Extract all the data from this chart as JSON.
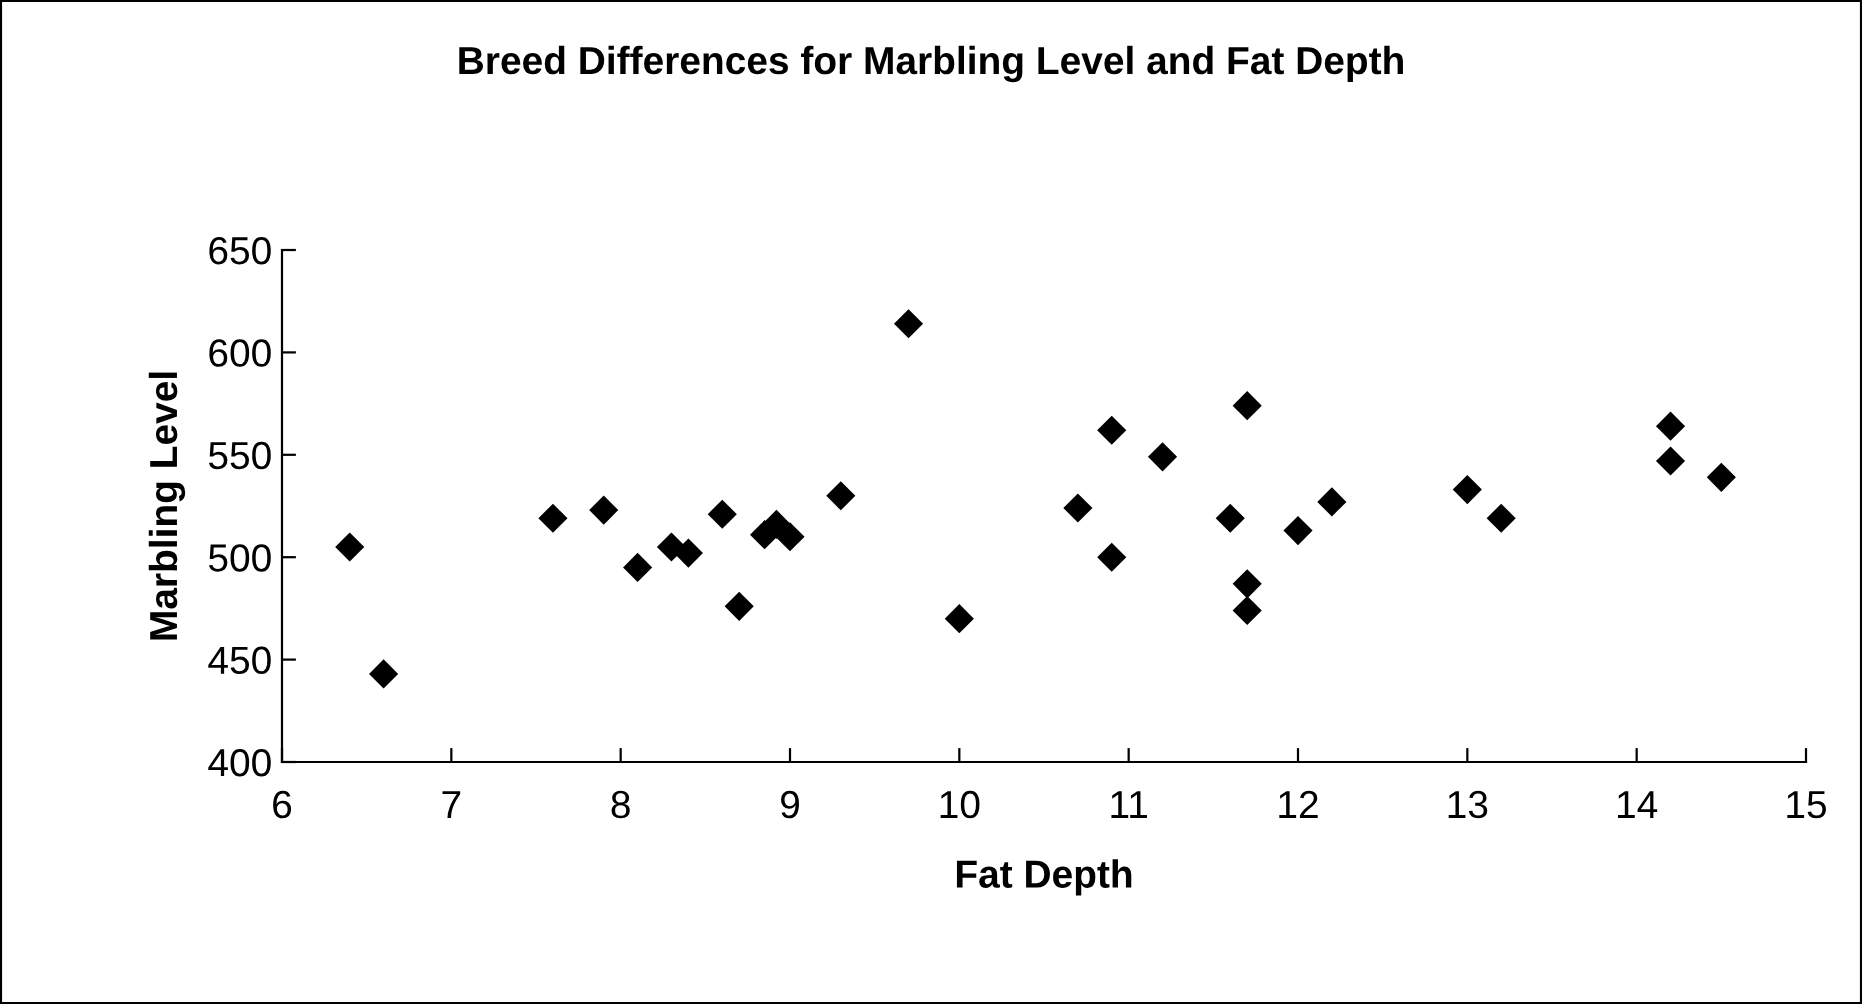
{
  "chart_data": {
    "type": "scatter",
    "title": "Breed Differences for Marbling Level and Fat Depth",
    "xlabel": "Fat Depth",
    "ylabel": "Marbling Level",
    "x": [
      6.4,
      6.6,
      7.6,
      7.9,
      8.1,
      8.3,
      8.4,
      8.6,
      8.7,
      8.85,
      8.92,
      9.0,
      9.3,
      9.7,
      10.0,
      10.7,
      10.9,
      10.9,
      11.2,
      11.6,
      11.7,
      11.7,
      11.7,
      12.0,
      12.2,
      13.0,
      13.2,
      14.2,
      14.2,
      14.5
    ],
    "values": [
      505,
      443,
      519,
      523,
      495,
      505,
      502,
      521,
      476,
      511,
      516,
      510,
      530,
      614,
      470,
      524,
      562,
      500,
      549,
      519,
      574,
      487,
      474,
      513,
      527,
      533,
      519,
      564,
      547,
      539
    ],
    "color": "#000000",
    "marker": "diamond",
    "xlim": [
      6,
      15
    ],
    "ylim": [
      400,
      650
    ],
    "xticks": [
      6,
      7,
      8,
      9,
      10,
      11,
      12,
      13,
      14,
      15
    ],
    "yticks": [
      400,
      450,
      500,
      550,
      600,
      650
    ],
    "grid": false,
    "legend": false
  }
}
